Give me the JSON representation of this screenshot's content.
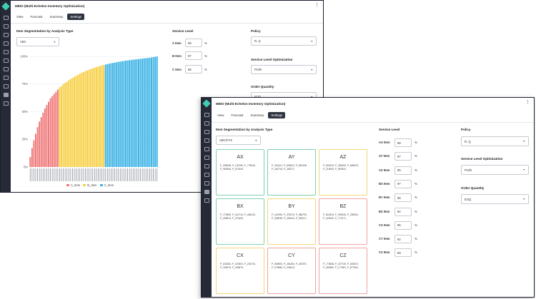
{
  "app": {
    "title": "MEIO (Multi-Echelon Inventory Optimization)"
  },
  "tabs": [
    "View",
    "Forecast",
    "Summary",
    "Settings"
  ],
  "active_tab": "Settings",
  "colors": {
    "a": "#f07a7a",
    "b": "#f7d046",
    "c": "#3fb4e6",
    "rail": "#252a36",
    "active_tab": "#2e3440"
  },
  "rail_icons": [
    "grid-icon",
    "list-icon",
    "refresh-icon",
    "box-icon",
    "chart-icon",
    "bar-icon",
    "trend-icon",
    "cross-tools-icon",
    "layers-icon",
    "settings-icon",
    "wrench-icon"
  ],
  "back_window": {
    "segmentation_title": "Item Segmentation by Analysis Type",
    "analysis_type": "ABC",
    "service_level": {
      "title": "Service Level",
      "rows": [
        {
          "label": "A Item",
          "value": "98"
        },
        {
          "label": "B Item",
          "value": "97"
        },
        {
          "label": "C Item",
          "value": "95"
        }
      ],
      "unit": "%"
    },
    "policy": {
      "title": "Policy",
      "value": "R, Q"
    },
    "slo": {
      "title": "Service Level Optimization",
      "value": "Profit"
    },
    "order_qty": {
      "title": "Order Quantity",
      "value": "EOQ"
    }
  },
  "front_window": {
    "segmentation_title": "Item Segmentation by Analysis Type",
    "analysis_type": "ABC/XYZ",
    "cells": [
      {
        "code": "AX",
        "items": [
          "P_295036, P_130750, P_779616,",
          "P_969306, P_672040,"
        ],
        "tone": "green"
      },
      {
        "code": "AY",
        "items": [
          "P_324221, P_649612, P_820348,",
          "P_462718, P_282077,"
        ],
        "tone": "green"
      },
      {
        "code": "AZ",
        "items": [
          "P_800225, P_284495, P_846878,",
          "P_215005, P_987603,"
        ],
        "tone": "yellow"
      },
      {
        "code": "BX",
        "items": [
          "P_778369, P_441710, P_446240,",
          "P_306519, P_374425,"
        ],
        "tone": "green"
      },
      {
        "code": "BY",
        "items": [
          "P_441990, P_378276, P_958790,",
          "P_059036, P_438104, P_903417,"
        ],
        "tone": "yellow"
      },
      {
        "code": "BZ",
        "items": [
          "P_824204, P_399036, P_239830,",
          "P_420000, P_771371,"
        ],
        "tone": "red"
      },
      {
        "code": "CX",
        "items": [
          "P_630254, P_187803, P_203733,",
          "P_269376, P_493879,"
        ],
        "tone": "yellow"
      },
      {
        "code": "CY",
        "items": [
          "P_559593, P_454254, P_487097,",
          "P_078965, P_434813,"
        ],
        "tone": "red"
      },
      {
        "code": "CZ",
        "items": [
          "P_770508, P_307730, P_303873,",
          "P_060590, P_177981, P_877564,"
        ],
        "tone": "red"
      }
    ],
    "service_level": {
      "title": "Service Level",
      "rows": [
        {
          "label": "AX Item",
          "value": "98"
        },
        {
          "label": "AY Item",
          "value": "97"
        },
        {
          "label": "AZ Item",
          "value": "95"
        },
        {
          "label": "BX Item",
          "value": "97"
        },
        {
          "label": "BY Item",
          "value": "95"
        },
        {
          "label": "BZ Item",
          "value": "92"
        },
        {
          "label": "CX Item",
          "value": "95"
        },
        {
          "label": "CY Item",
          "value": "92"
        },
        {
          "label": "CZ Item",
          "value": "89"
        }
      ],
      "unit": "%"
    },
    "policy": {
      "title": "Policy",
      "value": "R, Q"
    },
    "slo": {
      "title": "Service Level Optimization",
      "value": "Profit"
    },
    "order_qty": {
      "title": "Order Quantity",
      "value": "EOQ"
    }
  },
  "chart_data": {
    "type": "bar",
    "ylim": [
      0,
      100
    ],
    "yticks": [
      "0%",
      "25%",
      "50%",
      "75%",
      "100%"
    ],
    "grid": true,
    "legend": {
      "position": "bottom",
      "entries": [
        "A_Item",
        "B_Item",
        "C_Item"
      ]
    },
    "n_items": 70,
    "groups": [
      {
        "name": "A_Item",
        "start": 0,
        "count": 16,
        "color": "#f07a7a"
      },
      {
        "name": "B_Item",
        "start": 16,
        "count": 25,
        "color": "#f7d046"
      },
      {
        "name": "C_Item",
        "start": 41,
        "count": 29,
        "color": "#3fb4e6"
      }
    ],
    "values": [
      9,
      17,
      24,
      30,
      36,
      41,
      45,
      49,
      53,
      56,
      59,
      62,
      64,
      66,
      68,
      70,
      72,
      73,
      75,
      76,
      77,
      78.5,
      79.5,
      80.5,
      81.5,
      82.5,
      83.4,
      84.3,
      85.1,
      85.9,
      86.6,
      87.3,
      88,
      88.6,
      89.2,
      89.8,
      90.3,
      90.8,
      91.3,
      91.8,
      92.2,
      92.6,
      93,
      93.4,
      93.8,
      94.1,
      94.4,
      94.7,
      95,
      95.3,
      95.6,
      95.9,
      96.1,
      96.4,
      96.6,
      96.8,
      97,
      97.2,
      97.4,
      97.6,
      97.8,
      98,
      98.2,
      98.4,
      98.6,
      98.8,
      99,
      99.3,
      99.6,
      100
    ]
  }
}
